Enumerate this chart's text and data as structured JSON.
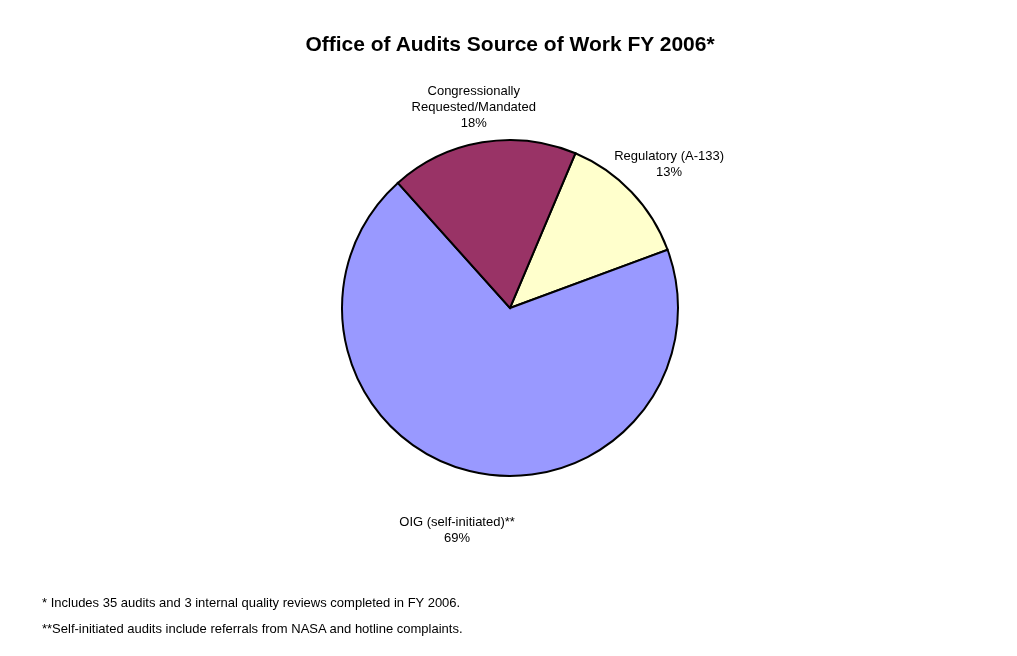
{
  "chart_data": {
    "type": "pie",
    "title": "Office of Audits Source of Work FY 2006*",
    "categories": [
      "Regulatory (A-133)",
      "OIG (self-initiated)**",
      "Congressionally Requested/Mandated"
    ],
    "values": [
      13,
      69,
      18
    ],
    "colors": [
      "#ffffcc",
      "#9999ff",
      "#993366"
    ],
    "value_labels": [
      "13%",
      "69%",
      "18%"
    ],
    "annotations": [
      "* Includes 35 audits and 3 internal quality reviews completed in FY 2006.",
      "**Self-initiated audits include referrals from NASA and hotline complaints."
    ]
  }
}
